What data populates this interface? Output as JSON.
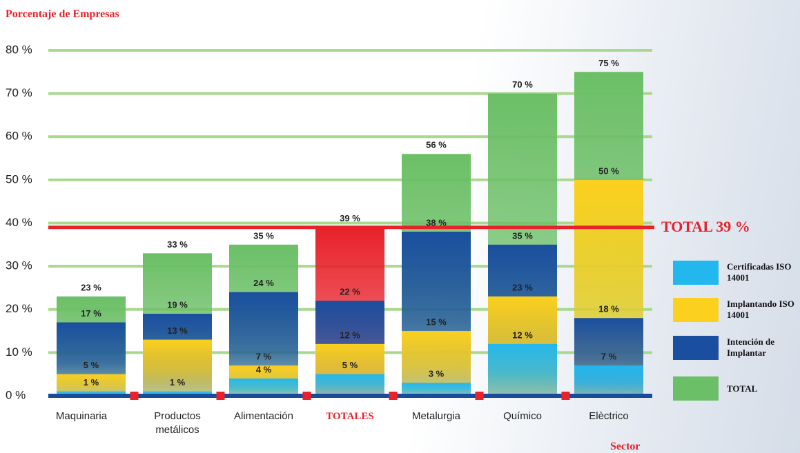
{
  "chart_data": {
    "type": "overlap-bar",
    "title": "Porcentaje de Empresas",
    "x_label": "Sector",
    "categories": [
      "Maquinaria",
      "Productos metálicos",
      "Alimentación",
      "TOTALES",
      "Metalurgia",
      "Químico",
      "Elèctrico"
    ],
    "series": [
      {
        "name": "Certificadas ISO 14001",
        "color": "#22b8ee",
        "values": [
          1,
          1,
          4,
          5,
          3,
          12,
          7
        ],
        "value_labels": [
          "1 %",
          "1 %",
          "4 %",
          "5 %",
          "3 %",
          "12 %",
          "7 %"
        ]
      },
      {
        "name": "Implantando ISO 14001",
        "color": "#fcd01e",
        "values": [
          5,
          13,
          7,
          12,
          15,
          23,
          50
        ],
        "value_labels": [
          "5 %",
          "13 %",
          "7 %",
          "12 %",
          "15 %",
          "23 %",
          "50 %"
        ]
      },
      {
        "name": "Intención de Implantar",
        "color": "#1a4f9f",
        "values": [
          17,
          19,
          24,
          22,
          38,
          35,
          18
        ],
        "value_labels": [
          "17 %",
          "19 %",
          "24 %",
          "22 %",
          "38 %",
          "35 %",
          "18 %"
        ]
      },
      {
        "name": "TOTAL",
        "color": "#6bbf66",
        "values": [
          23,
          33,
          35,
          39,
          56,
          70,
          75
        ],
        "value_labels": [
          "23 %",
          "33 %",
          "35 %",
          "39 %",
          "56 %",
          "70 %",
          "75 %"
        ]
      }
    ],
    "highlight": {
      "index": 3,
      "series": 3,
      "color": "#e8212a"
    },
    "reference_line": {
      "value": 39,
      "label": "TOTAL 39 %",
      "color": "#e8212a"
    },
    "ylim": [
      0,
      80
    ],
    "yticks": [
      {
        "value": 0,
        "label": "0 %"
      },
      {
        "value": 10,
        "label": "10 %"
      },
      {
        "value": 20,
        "label": "20 %"
      },
      {
        "value": 30,
        "label": "30 %"
      },
      {
        "value": 40,
        "label": "40 %"
      },
      {
        "value": 50,
        "label": "50 %"
      },
      {
        "value": 60,
        "label": "60 %"
      },
      {
        "value": 70,
        "label": "70 %"
      },
      {
        "value": 80,
        "label": "80 %"
      }
    ],
    "grid": true
  }
}
